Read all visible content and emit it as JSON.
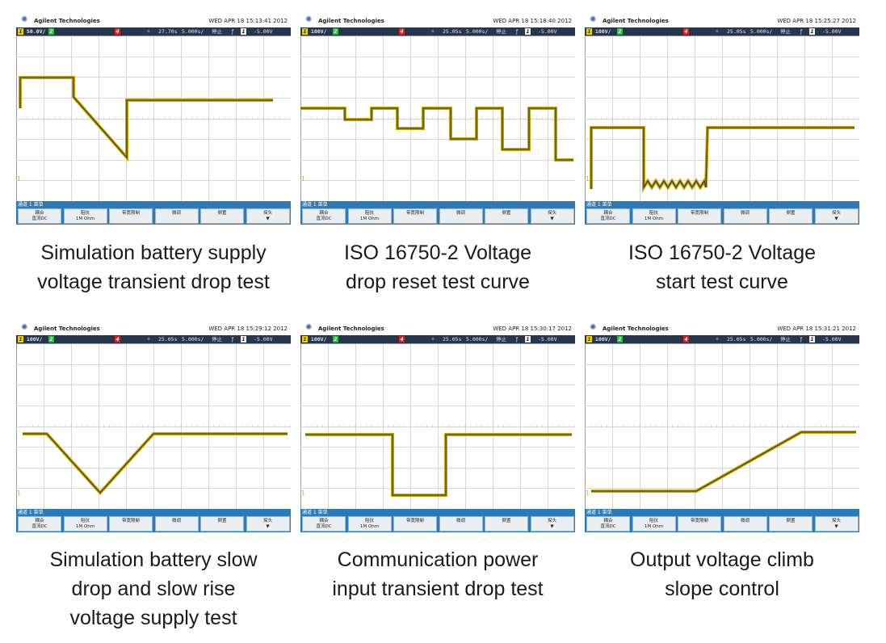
{
  "scope_common": {
    "brand": "Agilent Technologies",
    "menu_title": "通道 1 菜单",
    "softkeys": [
      {
        "l1": "耦合",
        "l2": "直流DC"
      },
      {
        "l1": "阻抗",
        "l2": "1M Ohm"
      },
      {
        "l1": "带宽限制",
        "l2": ""
      },
      {
        "l1": "微调",
        "l2": ""
      },
      {
        "l1": "倒置",
        "l2": ""
      },
      {
        "l1": "探头",
        "l2": "▼"
      }
    ],
    "colors": {
      "trace": "#c9a800",
      "trace_dark": "#3a3400",
      "grid": "#cfcfcf",
      "status_bg": "#27354e",
      "softbar": "#2a7bb8"
    }
  },
  "panels": [
    {
      "datetime": "WED APR 18 15:13:41 2012",
      "status": {
        "ch1": "50.0V/",
        "time": "27.70s",
        "tdiv": "5.000s/",
        "mode": "停止",
        "trig": "-5.00V"
      },
      "caption": [
        "Simulation battery supply",
        "voltage transient drop test"
      ]
    },
    {
      "datetime": "WED APR 18 15:18:40 2012",
      "status": {
        "ch1": "100V/",
        "time": "25.05s",
        "tdiv": "5.000s/",
        "mode": "停止",
        "trig": "-5.00V"
      },
      "caption": [
        "ISO 16750-2 Voltage",
        "drop reset test curve"
      ]
    },
    {
      "datetime": "WED APR 18 15:25:27 2012",
      "status": {
        "ch1": "100V/",
        "time": "25.05s",
        "tdiv": "5.000s/",
        "mode": "停止",
        "trig": "-5.00V"
      },
      "caption": [
        "ISO 16750-2 Voltage",
        "start test curve"
      ]
    },
    {
      "datetime": "WED APR 18 15:29:12 2012",
      "status": {
        "ch1": "100V/",
        "time": "25.05s",
        "tdiv": "5.000s/",
        "mode": "停止",
        "trig": "-5.00V"
      },
      "caption": [
        "Simulation battery slow",
        "drop and slow rise",
        "voltage supply test"
      ]
    },
    {
      "datetime": "WED APR 18 15:30:17 2012",
      "status": {
        "ch1": "100V/",
        "time": "25.05s",
        "tdiv": "5.000s/",
        "mode": "停止",
        "trig": "-5.00V"
      },
      "caption": [
        "Communication power",
        "input transient drop test"
      ]
    },
    {
      "datetime": "WED APR 18 15:31:21 2012",
      "status": {
        "ch1": "100V/",
        "time": "25.05s",
        "tdiv": "5.000s/",
        "mode": "停止",
        "trig": "-5.00V"
      },
      "caption": [
        "Output voltage climb",
        "slope control"
      ]
    }
  ]
}
